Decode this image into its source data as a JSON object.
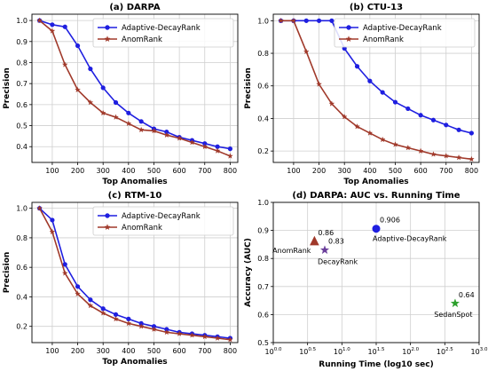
{
  "chart_data": [
    {
      "type": "line",
      "title": "(a) DARPA",
      "xlabel": "Top Anomalies",
      "ylabel": "Precision",
      "xlim": [
        20,
        830
      ],
      "ylim": [
        0.325,
        1.03
      ],
      "xticks": [
        100,
        200,
        300,
        400,
        500,
        600,
        700,
        800
      ],
      "yticks": [
        0.4,
        0.5,
        0.6,
        0.7,
        0.8,
        0.9,
        1.0
      ],
      "grid": true,
      "legend": "top-right",
      "x": [
        50,
        100,
        150,
        200,
        250,
        300,
        350,
        400,
        450,
        500,
        550,
        600,
        650,
        700,
        750,
        800
      ],
      "series": [
        {
          "name": "Adaptive-DecayRank",
          "color": "#1f1fe0",
          "marker": "circle",
          "values": [
            1.0,
            0.98,
            0.97,
            0.88,
            0.77,
            0.68,
            0.61,
            0.56,
            0.52,
            0.485,
            0.47,
            0.445,
            0.43,
            0.415,
            0.4,
            0.39
          ]
        },
        {
          "name": "AnomRank",
          "color": "#a0392a",
          "marker": "star",
          "values": [
            1.0,
            0.95,
            0.79,
            0.67,
            0.61,
            0.56,
            0.54,
            0.51,
            0.48,
            0.475,
            0.455,
            0.44,
            0.42,
            0.4,
            0.38,
            0.355
          ]
        }
      ]
    },
    {
      "type": "line",
      "title": "(b) CTU-13",
      "xlabel": "Top Anomalies",
      "ylabel": "Precision",
      "xlim": [
        20,
        830
      ],
      "ylim": [
        0.13,
        1.04
      ],
      "xticks": [
        100,
        200,
        300,
        400,
        500,
        600,
        700,
        800
      ],
      "yticks": [
        0.2,
        0.4,
        0.6,
        0.8,
        1.0
      ],
      "grid": true,
      "legend": "top-right",
      "x": [
        50,
        100,
        150,
        200,
        250,
        300,
        350,
        400,
        450,
        500,
        550,
        600,
        650,
        700,
        750,
        800
      ],
      "series": [
        {
          "name": "Adaptive-DecayRank",
          "color": "#1f1fe0",
          "marker": "circle",
          "values": [
            1.0,
            1.0,
            1.0,
            1.0,
            1.0,
            0.83,
            0.72,
            0.63,
            0.56,
            0.5,
            0.46,
            0.42,
            0.39,
            0.36,
            0.33,
            0.31
          ]
        },
        {
          "name": "AnomRank",
          "color": "#a0392a",
          "marker": "star",
          "values": [
            1.0,
            1.0,
            0.81,
            0.61,
            0.49,
            0.41,
            0.35,
            0.31,
            0.27,
            0.24,
            0.22,
            0.2,
            0.18,
            0.17,
            0.16,
            0.15
          ]
        }
      ]
    },
    {
      "type": "line",
      "title": "(c) RTM-10",
      "xlabel": "Top Anomalies",
      "ylabel": "Precision",
      "xlim": [
        20,
        830
      ],
      "ylim": [
        0.09,
        1.04
      ],
      "xticks": [
        100,
        200,
        300,
        400,
        500,
        600,
        700,
        800
      ],
      "yticks": [
        0.2,
        0.4,
        0.6,
        0.8,
        1.0
      ],
      "grid": true,
      "legend": "top-right",
      "x": [
        50,
        100,
        150,
        200,
        250,
        300,
        350,
        400,
        450,
        500,
        550,
        600,
        650,
        700,
        750,
        800
      ],
      "series": [
        {
          "name": "Adaptive-DecayRank",
          "color": "#1f1fe0",
          "marker": "circle",
          "values": [
            1.0,
            0.92,
            0.62,
            0.47,
            0.38,
            0.32,
            0.28,
            0.25,
            0.22,
            0.2,
            0.18,
            0.16,
            0.15,
            0.14,
            0.13,
            0.12
          ]
        },
        {
          "name": "AnomRank",
          "color": "#a0392a",
          "marker": "star",
          "values": [
            1.0,
            0.84,
            0.56,
            0.42,
            0.34,
            0.29,
            0.25,
            0.22,
            0.2,
            0.18,
            0.16,
            0.15,
            0.14,
            0.13,
            0.12,
            0.11
          ]
        }
      ]
    },
    {
      "type": "scatter",
      "title": "(d) DARPA: AUC vs. Running Time",
      "xlabel": "Running Time (log10 sec)",
      "ylabel": "Accuracy (AUC)",
      "xscale": "log10",
      "xlim": [
        0.0,
        3.0
      ],
      "ylim": [
        0.5,
        1.0
      ],
      "xtick_exponents": [
        0.0,
        0.5,
        1.0,
        1.5,
        2.0,
        2.5,
        3.0
      ],
      "xtick_labels": [
        "10",
        "10",
        "10",
        "10",
        "10",
        "10",
        "10"
      ],
      "xtick_superscripts": [
        "0.0",
        "0.5",
        "1.0",
        "1.5",
        "2.0",
        "2.5",
        "3.0"
      ],
      "yticks": [
        0.5,
        0.6,
        0.7,
        0.8,
        0.9,
        1.0
      ],
      "grid": true,
      "points": [
        {
          "name": "AnomRank",
          "x": 0.6,
          "y": 0.86,
          "value_label": "0.86",
          "color": "#a0392a",
          "marker": "triangle"
        },
        {
          "name": "DecayRank",
          "x": 0.75,
          "y": 0.83,
          "value_label": "0.83",
          "color": "#6a3d9a",
          "marker": "star"
        },
        {
          "name": "Adaptive-DecayRank",
          "x": 1.5,
          "y": 0.906,
          "value_label": "0.906",
          "color": "#1f1fe0",
          "marker": "circle"
        },
        {
          "name": "SedanSpot",
          "x": 2.65,
          "y": 0.64,
          "value_label": "0.64",
          "color": "#2ca02c",
          "marker": "star"
        }
      ]
    }
  ]
}
